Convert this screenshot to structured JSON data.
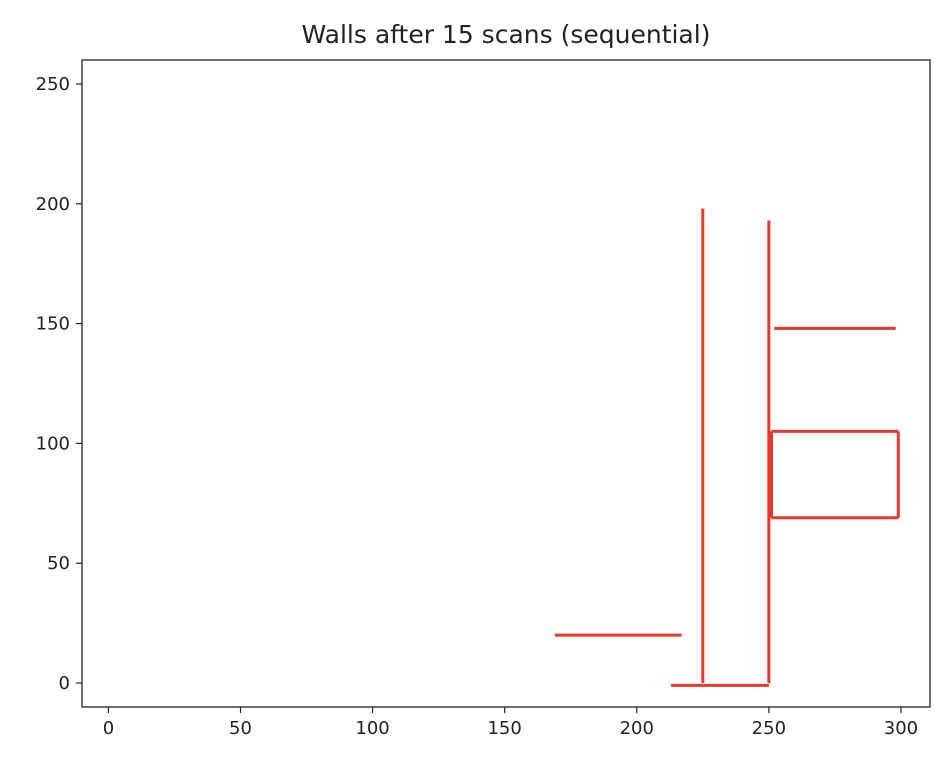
{
  "chart_data": {
    "type": "line",
    "title": "Walls after 15 scans (sequential)",
    "xlabel": "",
    "ylabel": "",
    "xlim": [
      -10,
      311
    ],
    "ylim": [
      -10,
      260
    ],
    "xticks": [
      0,
      50,
      100,
      150,
      200,
      250,
      300
    ],
    "yticks": [
      0,
      50,
      100,
      150,
      200,
      250
    ],
    "grid": false,
    "legend": "none",
    "colors": {
      "wall": "#e8372c",
      "axes": "#222222"
    },
    "segments": [
      {
        "name": "wall-vertical-x225",
        "x": [
          225,
          225
        ],
        "y": [
          0,
          198
        ]
      },
      {
        "name": "wall-vertical-x250",
        "x": [
          250,
          250
        ],
        "y": [
          0,
          193
        ]
      },
      {
        "name": "wall-bottom-y0",
        "x": [
          213,
          250
        ],
        "y": [
          -1,
          -1
        ]
      },
      {
        "name": "wall-left-y20",
        "x": [
          169,
          217
        ],
        "y": [
          20,
          20
        ]
      },
      {
        "name": "wall-upper-y148",
        "x": [
          252,
          298
        ],
        "y": [
          148,
          148
        ]
      },
      {
        "name": "room-top-y105",
        "x": [
          251,
          299
        ],
        "y": [
          105,
          105
        ]
      },
      {
        "name": "room-bottom-y69",
        "x": [
          251,
          299
        ],
        "y": [
          69,
          69
        ]
      },
      {
        "name": "room-right-x299",
        "x": [
          299,
          299
        ],
        "y": [
          69,
          105
        ]
      },
      {
        "name": "room-left-x251",
        "x": [
          251,
          251
        ],
        "y": [
          69,
          105
        ]
      }
    ]
  }
}
